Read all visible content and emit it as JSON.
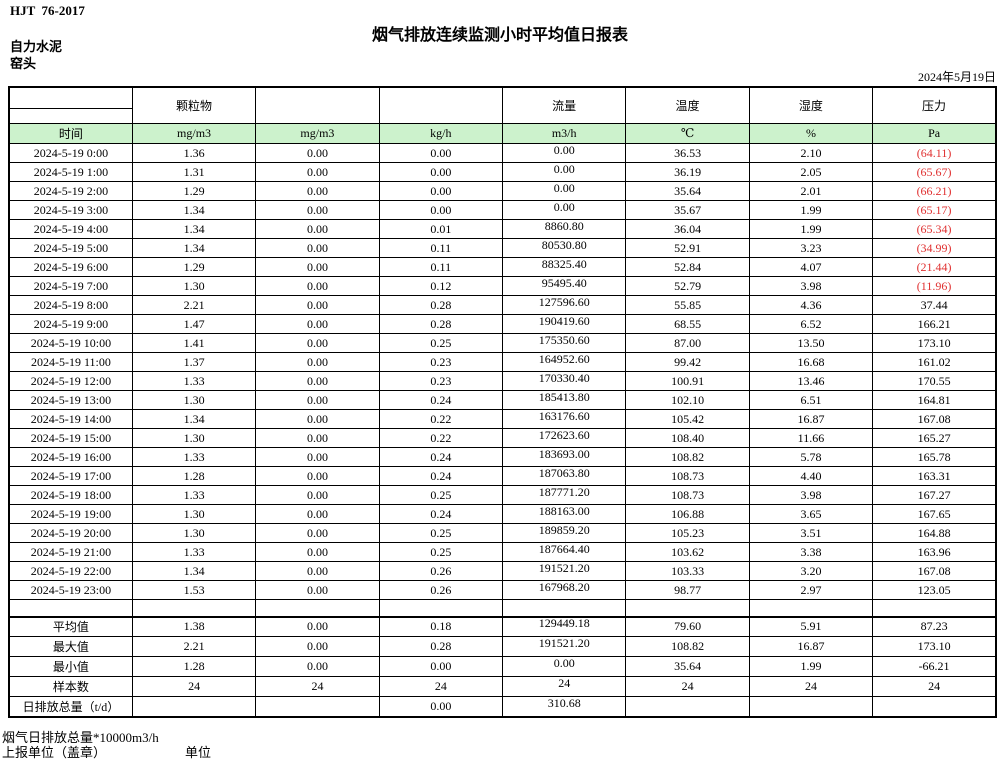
{
  "meta": {
    "standard": "HJT  76-2017",
    "title": "烟气排放连续监测小时平均值日报表",
    "company": "自力水泥",
    "location": "窑头",
    "date": "2024年5月19日"
  },
  "table": {
    "colors": {
      "header_green": "#ccf2cc",
      "negative_red": "#e03131",
      "border_black": "#000000"
    },
    "group_headers": [
      "",
      "颗粒物",
      "",
      "",
      "流量",
      "温度",
      "湿度",
      "压力"
    ],
    "unit_row": [
      "时间",
      "mg/m3",
      "mg/m3",
      "kg/h",
      "m3/h",
      "℃",
      "%",
      "Pa"
    ],
    "rows": [
      [
        "2024-5-19 0:00",
        "1.36",
        "0.00",
        "0.00",
        "0.00",
        "36.53",
        "2.10",
        "(64.11)"
      ],
      [
        "2024-5-19 1:00",
        "1.31",
        "0.00",
        "0.00",
        "0.00",
        "36.19",
        "2.05",
        "(65.67)"
      ],
      [
        "2024-5-19 2:00",
        "1.29",
        "0.00",
        "0.00",
        "0.00",
        "35.64",
        "2.01",
        "(66.21)"
      ],
      [
        "2024-5-19 3:00",
        "1.34",
        "0.00",
        "0.00",
        "0.00",
        "35.67",
        "1.99",
        "(65.17)"
      ],
      [
        "2024-5-19 4:00",
        "1.34",
        "0.00",
        "0.01",
        "8860.80",
        "36.04",
        "1.99",
        "(65.34)"
      ],
      [
        "2024-5-19 5:00",
        "1.34",
        "0.00",
        "0.11",
        "80530.80",
        "52.91",
        "3.23",
        "(34.99)"
      ],
      [
        "2024-5-19 6:00",
        "1.29",
        "0.00",
        "0.11",
        "88325.40",
        "52.84",
        "4.07",
        "(21.44)"
      ],
      [
        "2024-5-19 7:00",
        "1.30",
        "0.00",
        "0.12",
        "95495.40",
        "52.79",
        "3.98",
        "(11.96)"
      ],
      [
        "2024-5-19 8:00",
        "2.21",
        "0.00",
        "0.28",
        "127596.60",
        "55.85",
        "4.36",
        "37.44"
      ],
      [
        "2024-5-19 9:00",
        "1.47",
        "0.00",
        "0.28",
        "190419.60",
        "68.55",
        "6.52",
        "166.21"
      ],
      [
        "2024-5-19 10:00",
        "1.41",
        "0.00",
        "0.25",
        "175350.60",
        "87.00",
        "13.50",
        "173.10"
      ],
      [
        "2024-5-19 11:00",
        "1.37",
        "0.00",
        "0.23",
        "164952.60",
        "99.42",
        "16.68",
        "161.02"
      ],
      [
        "2024-5-19 12:00",
        "1.33",
        "0.00",
        "0.23",
        "170330.40",
        "100.91",
        "13.46",
        "170.55"
      ],
      [
        "2024-5-19 13:00",
        "1.30",
        "0.00",
        "0.24",
        "185413.80",
        "102.10",
        "6.51",
        "164.81"
      ],
      [
        "2024-5-19 14:00",
        "1.34",
        "0.00",
        "0.22",
        "163176.60",
        "105.42",
        "16.87",
        "167.08"
      ],
      [
        "2024-5-19 15:00",
        "1.30",
        "0.00",
        "0.22",
        "172623.60",
        "108.40",
        "11.66",
        "165.27"
      ],
      [
        "2024-5-19 16:00",
        "1.33",
        "0.00",
        "0.24",
        "183693.00",
        "108.82",
        "5.78",
        "165.78"
      ],
      [
        "2024-5-19 17:00",
        "1.28",
        "0.00",
        "0.24",
        "187063.80",
        "108.73",
        "4.40",
        "163.31"
      ],
      [
        "2024-5-19 18:00",
        "1.33",
        "0.00",
        "0.25",
        "187771.20",
        "108.73",
        "3.98",
        "167.27"
      ],
      [
        "2024-5-19 19:00",
        "1.30",
        "0.00",
        "0.24",
        "188163.00",
        "106.88",
        "3.65",
        "167.65"
      ],
      [
        "2024-5-19 20:00",
        "1.30",
        "0.00",
        "0.25",
        "189859.20",
        "105.23",
        "3.51",
        "164.88"
      ],
      [
        "2024-5-19 21:00",
        "1.33",
        "0.00",
        "0.25",
        "187664.40",
        "103.62",
        "3.38",
        "163.96"
      ],
      [
        "2024-5-19 22:00",
        "1.34",
        "0.00",
        "0.26",
        "191521.20",
        "103.33",
        "3.20",
        "167.08"
      ],
      [
        "2024-5-19 23:00",
        "1.53",
        "0.00",
        "0.26",
        "167968.20",
        "98.77",
        "2.97",
        "123.05"
      ]
    ],
    "summary_rows": [
      [
        "平均值",
        "1.38",
        "0.00",
        "0.18",
        "129449.18",
        "79.60",
        "5.91",
        "87.23"
      ],
      [
        "最大值",
        "2.21",
        "0.00",
        "0.28",
        "191521.20",
        "108.82",
        "16.87",
        "173.10"
      ],
      [
        "最小值",
        "1.28",
        "0.00",
        "0.00",
        "0.00",
        "35.64",
        "1.99",
        "-66.21"
      ],
      [
        "样本数",
        "24",
        "24",
        "24",
        "24",
        "24",
        "24",
        "24"
      ],
      [
        "日排放总量（t/d）",
        "",
        "",
        "0.00",
        "310.68",
        "",
        "",
        ""
      ]
    ]
  },
  "footer": {
    "note": "烟气日排放总量*10000m3/h",
    "report_unit_label": "上报单位（盖章）",
    "unit_label": "单位"
  }
}
